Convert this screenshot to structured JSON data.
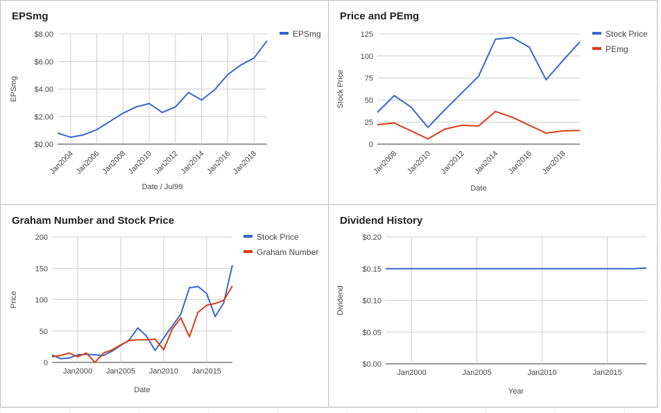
{
  "chart_data": [
    {
      "type": "line",
      "title": "EPSmg",
      "xlabel": "Date / Jul99",
      "ylabel": "EPSmg",
      "ylim": [
        0,
        8
      ],
      "xlim": [
        2003.0,
        2019.0
      ],
      "y_ticks": [
        "$0.00",
        "$2.00",
        "$4.00",
        "$6.00",
        "$8.00"
      ],
      "x_ticks": [
        "Jan2004",
        "Jan2006",
        "Jan2008",
        "Jan2010",
        "Jan2012",
        "Jan2014",
        "Jan2016",
        "Jan2018"
      ],
      "legend": "right",
      "grid": true,
      "series": [
        {
          "name": "EPSmg",
          "color": "#3366cc",
          "x": [
            2003,
            2004,
            2005,
            2006,
            2007,
            2008,
            2009,
            2010,
            2011,
            2012,
            2013,
            2014,
            2015,
            2016,
            2017,
            2018,
            2019
          ],
          "values": [
            0.8,
            0.5,
            0.68,
            1.05,
            1.65,
            2.25,
            2.7,
            2.95,
            2.3,
            2.7,
            3.75,
            3.2,
            3.95,
            5.05,
            5.75,
            6.25,
            7.5
          ]
        }
      ]
    },
    {
      "type": "line",
      "title": "Price and PEmg",
      "xlabel": "Date",
      "ylabel": "Stock Price",
      "ylim": [
        0,
        125
      ],
      "xlim": [
        2007.0,
        2019.0
      ],
      "y_ticks": [
        "0",
        "25",
        "50",
        "75",
        "100",
        "125"
      ],
      "x_ticks": [
        "Jan2008",
        "Jan2010",
        "Jan2012",
        "Jan2014",
        "Jan2016",
        "Jan2018"
      ],
      "legend": "right",
      "grid": true,
      "series": [
        {
          "name": "Stock Price",
          "color": "#3366cc",
          "x": [
            2007,
            2008,
            2009,
            2010,
            2011,
            2012,
            2013,
            2014,
            2015,
            2016,
            2017,
            2018,
            2019
          ],
          "values": [
            36,
            55,
            42,
            19,
            39,
            58,
            77,
            119,
            121,
            110,
            73,
            95,
            116
          ]
        },
        {
          "name": "PEmg",
          "color": "#dc3912",
          "x": [
            2007,
            2008,
            2009,
            2010,
            2011,
            2012,
            2013,
            2014,
            2015,
            2016,
            2017,
            2018,
            2019
          ],
          "values": [
            22,
            24,
            15,
            6,
            17,
            21.5,
            20.5,
            37,
            30.5,
            21.5,
            12.5,
            15,
            15.5
          ]
        }
      ]
    },
    {
      "type": "line",
      "title": "Graham Number and Stock Price",
      "xlabel": "Date",
      "ylabel": "Price",
      "ylim": [
        0,
        200
      ],
      "xlim": [
        1997.0,
        2018.0
      ],
      "y_ticks": [
        "0",
        "50",
        "100",
        "150",
        "200"
      ],
      "x_ticks": [
        "Jan2000",
        "Jan2005",
        "Jan2010",
        "Jan2015"
      ],
      "legend": "right",
      "grid": true,
      "series": [
        {
          "name": "Stock Price",
          "color": "#3366cc",
          "x": [
            1997,
            1998,
            1999,
            2000,
            2001,
            2002,
            2003,
            2004,
            2005,
            2006,
            2007,
            2008,
            2009,
            2010,
            2011,
            2012,
            2013,
            2014,
            2015,
            2016,
            2017,
            2018
          ],
          "values": [
            12,
            6,
            7,
            12,
            13,
            12,
            11,
            18,
            27,
            36,
            55,
            42,
            19,
            39,
            58,
            77,
            119,
            121,
            110,
            73,
            95,
            155
          ]
        },
        {
          "name": "Graham Number",
          "color": "#dc3912",
          "x": [
            1997,
            1998,
            1999,
            2000,
            2001,
            2002,
            2003,
            2004,
            2005,
            2006,
            2007,
            2008,
            2009,
            2010,
            2011,
            2012,
            2013,
            2014,
            2015,
            2016,
            2017,
            2018
          ],
          "values": [
            9,
            11,
            15,
            9,
            15,
            0,
            15,
            20,
            28,
            35,
            36,
            36,
            37,
            20,
            53,
            71,
            41,
            80,
            91,
            94,
            99,
            122
          ]
        }
      ]
    },
    {
      "type": "line",
      "title": "Dividend History",
      "xlabel": "Year",
      "ylabel": "Dividend",
      "ylim": [
        0,
        0.2
      ],
      "xlim": [
        1998.0,
        2018.0
      ],
      "y_ticks": [
        "$0.00",
        "$0.05",
        "$0.10",
        "$0.15",
        "$0.20"
      ],
      "x_ticks": [
        "Jan2000",
        "Jan2005",
        "Jan2010",
        "Jan2015"
      ],
      "legend": "none",
      "grid": true,
      "series": [
        {
          "color": "#3366cc",
          "x": [
            1998,
            2017,
            2018
          ],
          "values": [
            0.15,
            0.15,
            0.151
          ]
        }
      ]
    }
  ]
}
